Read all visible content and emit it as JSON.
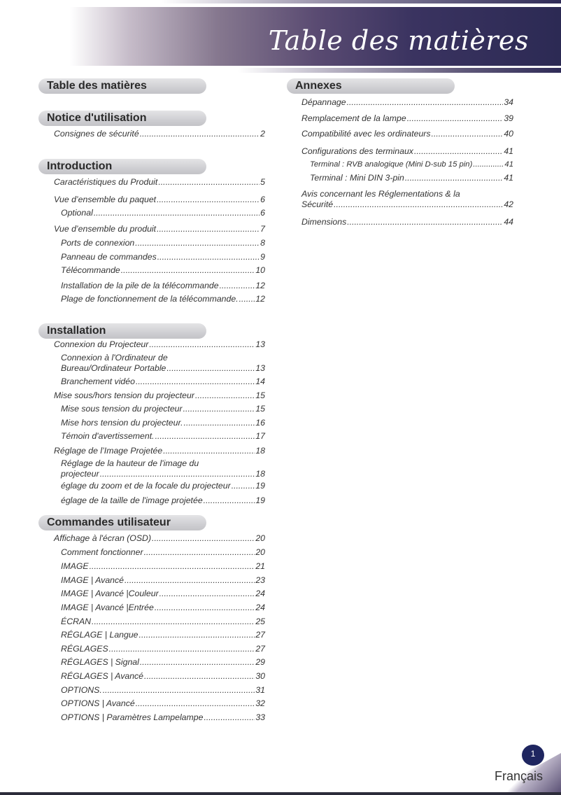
{
  "header": {
    "title": "Table des matières"
  },
  "left_column": {
    "sections": [
      {
        "heading": "Table des matières",
        "entries": []
      },
      {
        "heading": "Notice d'utilisation",
        "entries": [
          {
            "lines": [
              "Consignes de sécurité"
            ],
            "page": "2",
            "level": 1
          }
        ]
      },
      {
        "heading": "Introduction",
        "entries": [
          {
            "lines": [
              "Caractéristiques du Produit"
            ],
            "page": "5",
            "level": 1
          },
          {
            "lines": [
              "Vue d’ensemble du paquet"
            ],
            "page": "6",
            "level": 1
          },
          {
            "lines": [
              "Optional"
            ],
            "page": "6",
            "level": 2
          },
          {
            "lines": [
              "Vue d’ensemble du produit"
            ],
            "page": "7",
            "level": 1
          },
          {
            "lines": [
              "Ports de connexion"
            ],
            "page": "8",
            "level": 2
          },
          {
            "lines": [
              "Panneau de commandes"
            ],
            "page": "9",
            "level": 2
          },
          {
            "lines": [
              "Télécommande"
            ],
            "page": "10",
            "level": 2
          },
          {
            "lines": [
              "Installation de la pile de la télécommande"
            ],
            "page": "12",
            "level": 2
          },
          {
            "lines": [
              "Plage de fonctionnement de la télécommande."
            ],
            "page": "12",
            "level": 2
          }
        ]
      },
      {
        "heading": "Installation",
        "entries": [
          {
            "lines": [
              "Connexion du Projecteur"
            ],
            "page": "13",
            "level": 1
          },
          {
            "lines": [
              "Connexion à l'Ordinateur de",
              "Bureau/Ordinateur Portable"
            ],
            "page": "13",
            "level": 2
          },
          {
            "lines": [
              "Branchement vidéo"
            ],
            "page": "14",
            "level": 2
          },
          {
            "lines": [
              "Mise sous/hors tension du projecteur"
            ],
            "page": "15",
            "level": 1
          },
          {
            "lines": [
              "Mise sous tension du projecteur"
            ],
            "page": "15",
            "level": 2
          },
          {
            "lines": [
              "Mise hors tension du projecteur."
            ],
            "page": "16",
            "level": 2
          },
          {
            "lines": [
              "Témoin d'avertissement."
            ],
            "page": "17",
            "level": 2
          },
          {
            "lines": [
              "Réglage de l’Image Projetée"
            ],
            "page": "18",
            "level": 1
          },
          {
            "lines": [
              "Réglage de la hauteur de l'image du",
              "projecteur"
            ],
            "page": "18",
            "level": 2
          },
          {
            "lines": [
              "églage du zoom et de la focale du projecteur"
            ],
            "page": "19",
            "level": 2
          },
          {
            "lines": [
              "églage de la taille de l'image projetée"
            ],
            "page": "19",
            "level": 2
          }
        ]
      },
      {
        "heading": "Commandes utilisateur",
        "entries": [
          {
            "lines": [
              "Affichage à l'écran (OSD)"
            ],
            "page": "20",
            "level": 1
          },
          {
            "lines": [
              "Comment fonctionner"
            ],
            "page": "20",
            "level": 2
          },
          {
            "lines": [
              "IMAGE"
            ],
            "page": "21",
            "level": 2
          },
          {
            "lines": [
              "IMAGE | Avancé"
            ],
            "page": "23",
            "level": 2
          },
          {
            "lines": [
              "IMAGE | Avancé |Couleur"
            ],
            "page": "24",
            "level": 2
          },
          {
            "lines": [
              "IMAGE | Avancé |Entrée"
            ],
            "page": "24",
            "level": 2
          },
          {
            "lines": [
              "ÉCRAN"
            ],
            "page": "25",
            "level": 2
          },
          {
            "lines": [
              "RÉGLAGE | Langue"
            ],
            "page": "27",
            "level": 2
          },
          {
            "lines": [
              "RÉGLAGES"
            ],
            "page": "27",
            "level": 2
          },
          {
            "lines": [
              "RÉGLAGES | Signal"
            ],
            "page": "29",
            "level": 2
          },
          {
            "lines": [
              "RÉGLAGES | Avancé"
            ],
            "page": "30",
            "level": 2
          },
          {
            "lines": [
              "OPTIONS."
            ],
            "page": "31",
            "level": 2
          },
          {
            "lines": [
              "OPTIONS | Avancé"
            ],
            "page": "32",
            "level": 2
          },
          {
            "lines": [
              "OPTIONS | Paramètres Lampelampe"
            ],
            "page": "33",
            "level": 2
          }
        ]
      }
    ]
  },
  "right_column": {
    "sections": [
      {
        "heading": "Annexes",
        "entries": [
          {
            "lines": [
              "Dépannage"
            ],
            "page": "34",
            "level": 1
          },
          {
            "lines": [
              "Remplacement de la lampe"
            ],
            "page": "39",
            "level": 1
          },
          {
            "lines": [
              "Compatibilité avec les ordinateurs"
            ],
            "page": "40",
            "level": 1
          },
          {
            "lines": [
              "Configurations des terminaux"
            ],
            "page": "41",
            "level": 1
          },
          {
            "lines": [
              "Terminal : RVB analogique (Mini D-sub 15 pin)"
            ],
            "page": "41",
            "level": 2,
            "small": true
          },
          {
            "lines": [
              "Terminal : Mini DIN 3-pin"
            ],
            "page": "41",
            "level": 2
          },
          {
            "lines": [
              "Avis concernant les Réglementations & la",
              "Sécurité"
            ],
            "page": "42",
            "level": 1
          },
          {
            "lines": [
              "Dimensions"
            ],
            "page": "44",
            "level": 1
          }
        ]
      }
    ]
  },
  "footer": {
    "page_number": "1",
    "language": "Français"
  },
  "colors": {
    "banner_dark": "#2c2a54",
    "badge": "#1f2660",
    "pill": "#cfcfd3"
  }
}
